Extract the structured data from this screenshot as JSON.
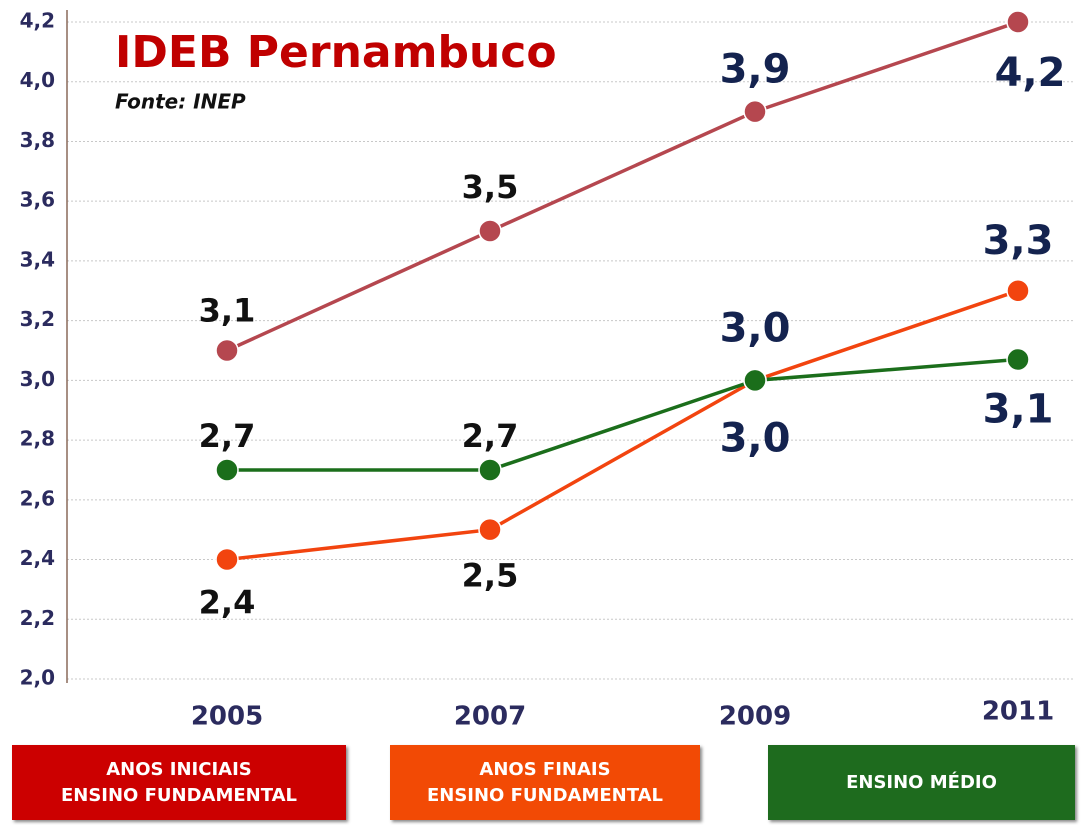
{
  "chart_data": {
    "type": "line",
    "title": "IDEB Pernambuco",
    "subtitle": "Fonte: INEP",
    "categories": [
      "2005",
      "2007",
      "2009",
      "2011"
    ],
    "series": [
      {
        "name": "ANOS INICIAIS\nENSINO FUNDAMENTAL",
        "color": "#b5474f",
        "values": [
          3.1,
          3.5,
          3.9,
          4.2
        ],
        "value_labels": [
          "3,1",
          "3,5",
          "3,9",
          "4,2"
        ]
      },
      {
        "name": "ANOS FINAIS\nENSINO FUNDAMENTAL",
        "color": "#f2440f",
        "values": [
          2.4,
          2.5,
          3.0,
          3.3
        ],
        "value_labels": [
          "2,4",
          "2,5",
          "3,0",
          "3,3"
        ]
      },
      {
        "name": "ENSINO MÉDIO",
        "color": "#1b6e1b",
        "values": [
          2.7,
          2.7,
          3.0,
          3.07
        ],
        "value_labels": [
          "2,7",
          "2,7",
          "3,0",
          "3,1"
        ]
      }
    ],
    "ylim": [
      2.0,
      4.2
    ],
    "yticks": [
      {
        "value": 2.0,
        "label": "2,0"
      },
      {
        "value": 2.2,
        "label": "2,2"
      },
      {
        "value": 2.4,
        "label": "2,4"
      },
      {
        "value": 2.6,
        "label": "2,6"
      },
      {
        "value": 2.8,
        "label": "2,8"
      },
      {
        "value": 3.0,
        "label": "3,0"
      },
      {
        "value": 3.2,
        "label": "3,2"
      },
      {
        "value": 3.4,
        "label": "3,4"
      },
      {
        "value": 3.6,
        "label": "3,6"
      },
      {
        "value": 3.8,
        "label": "3,8"
      },
      {
        "value": 4.0,
        "label": "4,0"
      },
      {
        "value": 4.2,
        "label": "4,2"
      }
    ],
    "grid": true
  }
}
